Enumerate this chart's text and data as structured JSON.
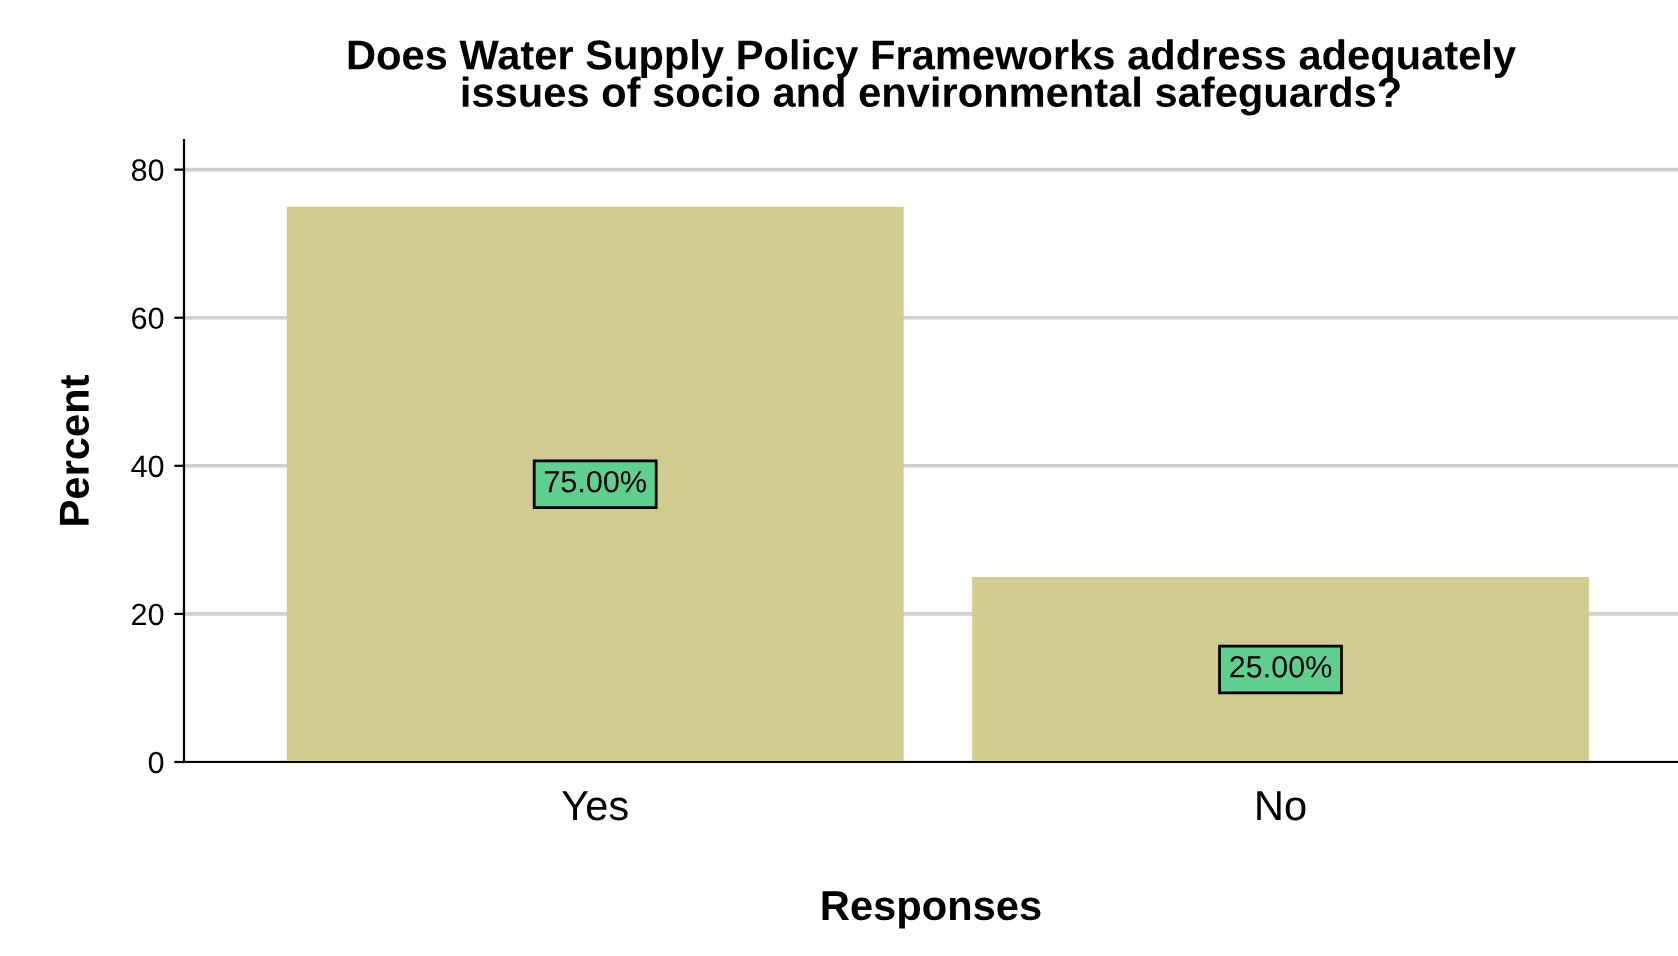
{
  "chart_data": {
    "type": "bar",
    "title": "Does Water Supply Policy Frameworks address adequately\nissues of socio and environmental safeguards?",
    "xlabel": "Responses",
    "ylabel": "Percent",
    "categories": [
      "Yes",
      "No"
    ],
    "values": [
      75,
      25
    ],
    "color": "#d0cb8e",
    "value_labels": [
      "75.00%",
      "25.00%"
    ],
    "ylim": [
      0,
      84
    ],
    "yticks": [
      0,
      20,
      40,
      60,
      80
    ],
    "grid": "y"
  }
}
